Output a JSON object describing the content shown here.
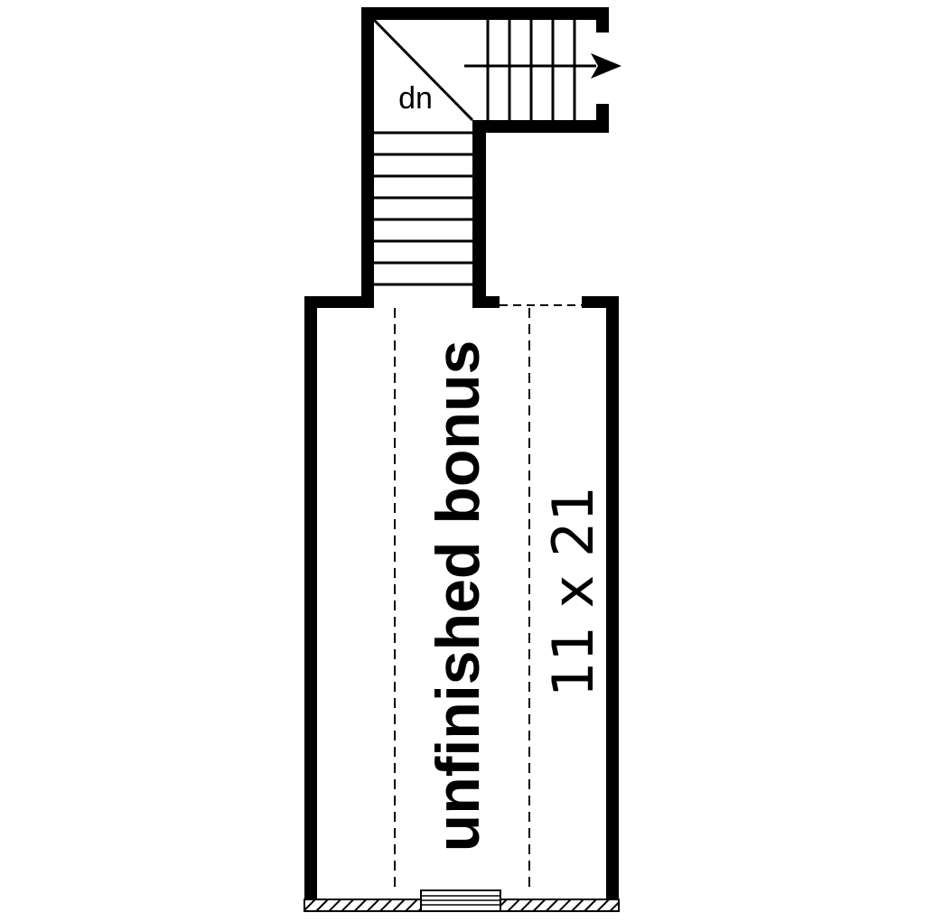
{
  "plan": {
    "room": {
      "name": "unfinished bonus",
      "dimensions": "11 x 21"
    },
    "stair": {
      "label": "dn",
      "direction": "down"
    }
  },
  "colors": {
    "ink": "#000000",
    "paper": "#ffffff"
  },
  "icons": {
    "stair_arrow": "arrow-right-icon",
    "window": "window-icon"
  }
}
